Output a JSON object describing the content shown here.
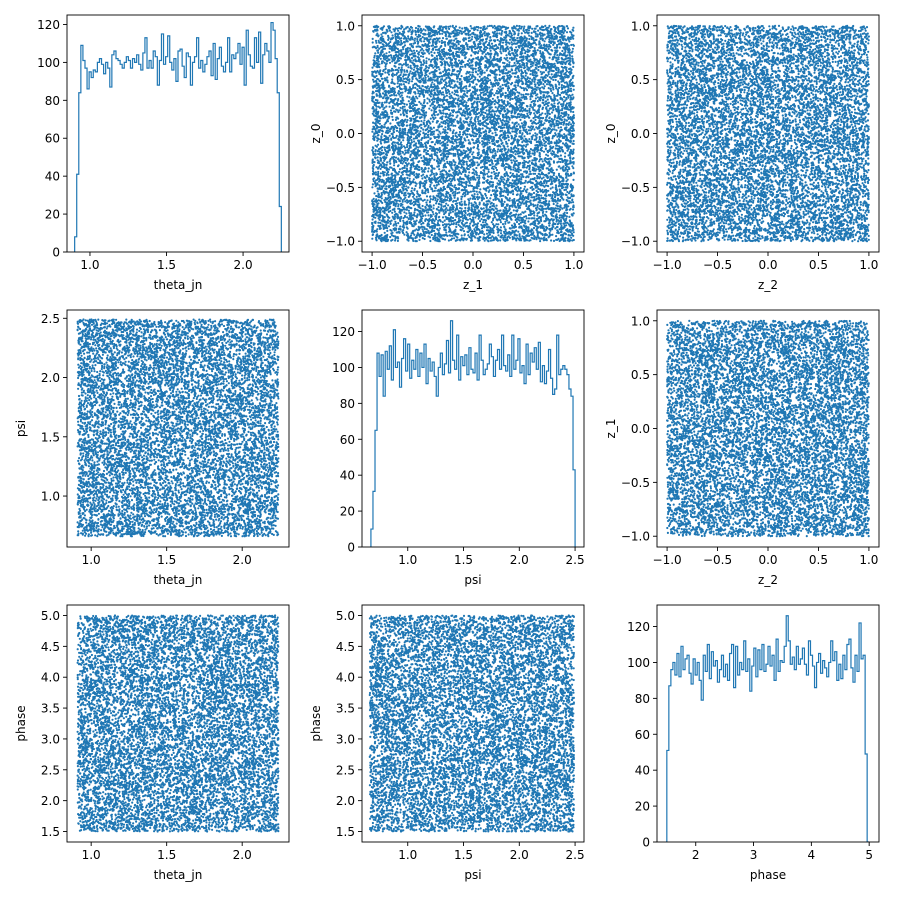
{
  "figure": {
    "layout": "3x3 corner plot",
    "marker_color": "#1f77b4",
    "axes_color": "#000000",
    "background": "#ffffff"
  },
  "chart_data": [
    {
      "id": "p11",
      "type": "histogram",
      "row": 0,
      "col": 0,
      "xlabel": "theta_jn",
      "ylabel": "",
      "xlim": [
        0.85,
        2.3
      ],
      "ylim": [
        0,
        125
      ],
      "xticks": [
        1.0,
        1.5,
        2.0
      ],
      "xtick_labels": [
        "1.0",
        "1.5",
        "2.0"
      ],
      "yticks": [
        0,
        20,
        40,
        60,
        80,
        100,
        120
      ],
      "ytick_labels": [
        "0",
        "20",
        "40",
        "60",
        "80",
        "100",
        "120"
      ],
      "bin_range": [
        0.9,
        2.25
      ],
      "bin_count": 100,
      "counts": [
        8,
        41,
        84,
        109,
        101,
        97,
        86,
        95,
        92,
        96,
        95,
        100,
        102,
        99,
        94,
        100,
        97,
        87,
        104,
        106,
        102,
        101,
        99,
        97,
        100,
        103,
        101,
        97,
        102,
        100,
        104,
        99,
        96,
        105,
        113,
        97,
        101,
        97,
        106,
        103,
        88,
        101,
        115,
        99,
        103,
        114,
        100,
        96,
        102,
        90,
        106,
        107,
        98,
        92,
        105,
        103,
        88,
        100,
        103,
        113,
        97,
        101,
        95,
        99,
        103,
        106,
        93,
        110,
        91,
        102,
        108,
        98,
        95,
        100,
        113,
        95,
        104,
        102,
        105,
        110,
        99,
        108,
        88,
        117,
        104,
        98,
        97,
        113,
        100,
        116,
        89,
        104,
        110,
        106,
        100,
        121,
        117,
        102,
        84,
        24
      ]
    },
    {
      "id": "p21",
      "type": "scatter",
      "row": 0,
      "col": 1,
      "xlabel": "z_1",
      "ylabel": "z_0",
      "xlim": [
        -1.1,
        1.1
      ],
      "ylim": [
        -1.1,
        1.1
      ],
      "xticks": [
        -1.0,
        -0.5,
        0.0,
        0.5,
        1.0
      ],
      "xtick_labels": [
        "−1.0",
        "−0.5",
        "0.0",
        "0.5",
        "1.0"
      ],
      "yticks": [
        -1.0,
        -0.5,
        0.0,
        0.5,
        1.0
      ],
      "ytick_labels": [
        "−1.0",
        "−0.5",
        "0.0",
        "0.5",
        "1.0"
      ],
      "x_range": [
        -1.0,
        1.0
      ],
      "y_range": [
        -1.0,
        1.0
      ],
      "n_points": 10000,
      "seed": 11
    },
    {
      "id": "p22",
      "type": "scatter",
      "row": 0,
      "col": 2,
      "xlabel": "z_2",
      "ylabel": "z_0",
      "xlim": [
        -1.1,
        1.1
      ],
      "ylim": [
        -1.1,
        1.1
      ],
      "xticks": [
        -1.0,
        -0.5,
        0.0,
        0.5,
        1.0
      ],
      "xtick_labels": [
        "−1.0",
        "−0.5",
        "0.0",
        "0.5",
        "1.0"
      ],
      "yticks": [
        -1.0,
        -0.5,
        0.0,
        0.5,
        1.0
      ],
      "ytick_labels": [
        "−1.0",
        "−0.5",
        "0.0",
        "0.5",
        "1.0"
      ],
      "x_range": [
        -1.0,
        1.0
      ],
      "y_range": [
        -1.0,
        1.0
      ],
      "n_points": 10000,
      "seed": 23
    },
    {
      "id": "p31",
      "type": "scatter",
      "row": 1,
      "col": 0,
      "xlabel": "theta_jn",
      "ylabel": "psi",
      "xlim": [
        0.84,
        2.31
      ],
      "ylim": [
        0.57,
        2.57
      ],
      "xticks": [
        1.0,
        1.5,
        2.0
      ],
      "xtick_labels": [
        "1.0",
        "1.5",
        "2.0"
      ],
      "yticks": [
        1.0,
        1.5,
        2.0,
        2.5
      ],
      "ytick_labels": [
        "1.0",
        "1.5",
        "2.0",
        "2.5"
      ],
      "x_range": [
        0.91,
        2.24
      ],
      "y_range": [
        0.66,
        2.49
      ],
      "n_points": 10000,
      "seed": 37
    },
    {
      "id": "p32",
      "type": "histogram",
      "row": 1,
      "col": 1,
      "xlabel": "psi",
      "ylabel": "",
      "xlim": [
        0.59,
        2.58
      ],
      "ylim": [
        0,
        132
      ],
      "xticks": [
        1.0,
        1.5,
        2.0,
        2.5
      ],
      "xtick_labels": [
        "1.0",
        "1.5",
        "2.0",
        "2.5"
      ],
      "yticks": [
        0,
        20,
        40,
        60,
        80,
        100,
        120
      ],
      "ytick_labels": [
        "0",
        "20",
        "40",
        "60",
        "80",
        "100",
        "120"
      ],
      "bin_range": [
        0.67,
        2.5
      ],
      "bin_count": 100,
      "counts": [
        10,
        31,
        65,
        108,
        95,
        107,
        84,
        109,
        99,
        112,
        93,
        121,
        100,
        103,
        89,
        105,
        116,
        98,
        113,
        94,
        104,
        99,
        110,
        95,
        108,
        100,
        113,
        91,
        105,
        98,
        103,
        95,
        84,
        100,
        108,
        96,
        102,
        115,
        97,
        126,
        104,
        99,
        118,
        93,
        106,
        101,
        107,
        96,
        111,
        99,
        97,
        108,
        93,
        118,
        104,
        96,
        99,
        102,
        113,
        106,
        95,
        104,
        110,
        99,
        118,
        101,
        98,
        107,
        95,
        118,
        99,
        104,
        116,
        97,
        101,
        91,
        113,
        96,
        108,
        103,
        111,
        99,
        114,
        92,
        101,
        91,
        98,
        110,
        94,
        85,
        88,
        118,
        96,
        99,
        101,
        99,
        96,
        88,
        84,
        43
      ]
    },
    {
      "id": "p33",
      "type": "scatter",
      "row": 1,
      "col": 2,
      "xlabel": "z_2",
      "ylabel": "z_1",
      "xlim": [
        -1.1,
        1.1
      ],
      "ylim": [
        -1.1,
        1.1
      ],
      "xticks": [
        -1.0,
        -0.5,
        0.0,
        0.5,
        1.0
      ],
      "xtick_labels": [
        "−1.0",
        "−0.5",
        "0.0",
        "0.5",
        "1.0"
      ],
      "yticks": [
        -1.0,
        -0.5,
        0.0,
        0.5,
        1.0
      ],
      "ytick_labels": [
        "−1.0",
        "−0.5",
        "0.0",
        "0.5",
        "1.0"
      ],
      "x_range": [
        -1.0,
        1.0
      ],
      "y_range": [
        -1.0,
        1.0
      ],
      "n_points": 10000,
      "seed": 53
    },
    {
      "id": "p41",
      "type": "scatter",
      "row": 2,
      "col": 0,
      "xlabel": "theta_jn",
      "ylabel": "phase",
      "xlim": [
        0.84,
        2.31
      ],
      "ylim": [
        1.33,
        5.17
      ],
      "xticks": [
        1.0,
        1.5,
        2.0
      ],
      "xtick_labels": [
        "1.0",
        "1.5",
        "2.0"
      ],
      "yticks": [
        1.5,
        2.0,
        2.5,
        3.0,
        3.5,
        4.0,
        4.5,
        5.0
      ],
      "ytick_labels": [
        "1.5",
        "2.0",
        "2.5",
        "3.0",
        "3.5",
        "4.0",
        "4.5",
        "5.0"
      ],
      "x_range": [
        0.91,
        2.24
      ],
      "y_range": [
        1.5,
        5.0
      ],
      "n_points": 10000,
      "seed": 71
    },
    {
      "id": "p42",
      "type": "scatter",
      "row": 2,
      "col": 1,
      "xlabel": "psi",
      "ylabel": "phase",
      "xlim": [
        0.59,
        2.58
      ],
      "ylim": [
        1.33,
        5.17
      ],
      "xticks": [
        1.0,
        1.5,
        2.0,
        2.5
      ],
      "xtick_labels": [
        "1.0",
        "1.5",
        "2.0",
        "2.5"
      ],
      "yticks": [
        1.5,
        2.0,
        2.5,
        3.0,
        3.5,
        4.0,
        4.5,
        5.0
      ],
      "ytick_labels": [
        "1.5",
        "2.0",
        "2.5",
        "3.0",
        "3.5",
        "4.0",
        "4.5",
        "5.0"
      ],
      "x_range": [
        0.66,
        2.49
      ],
      "y_range": [
        1.5,
        5.0
      ],
      "n_points": 10000,
      "seed": 89
    },
    {
      "id": "p43",
      "type": "histogram",
      "row": 2,
      "col": 2,
      "xlabel": "phase",
      "ylabel": "",
      "xlim": [
        1.33,
        5.17
      ],
      "ylim": [
        0,
        132
      ],
      "xticks": [
        2,
        3,
        4,
        5
      ],
      "xtick_labels": [
        "2",
        "3",
        "4",
        "5"
      ],
      "yticks": [
        0,
        20,
        40,
        60,
        80,
        100,
        120
      ],
      "ytick_labels": [
        "0",
        "20",
        "40",
        "60",
        "80",
        "100",
        "120"
      ],
      "bin_range": [
        1.5,
        5.0
      ],
      "bin_count": 100,
      "counts": [
        51,
        87,
        96,
        100,
        93,
        105,
        92,
        109,
        96,
        102,
        104,
        94,
        88,
        102,
        93,
        100,
        90,
        79,
        104,
        95,
        110,
        91,
        106,
        98,
        101,
        89,
        96,
        104,
        92,
        99,
        90,
        105,
        110,
        86,
        109,
        93,
        100,
        96,
        112,
        95,
        102,
        84,
        98,
        108,
        92,
        107,
        96,
        110,
        95,
        99,
        109,
        98,
        104,
        90,
        113,
        95,
        101,
        100,
        109,
        126,
        112,
        99,
        103,
        96,
        109,
        99,
        102,
        108,
        99,
        93,
        112,
        104,
        98,
        86,
        100,
        105,
        94,
        101,
        97,
        92,
        100,
        112,
        101,
        106,
        90,
        99,
        91,
        104,
        96,
        110,
        113,
        97,
        89,
        104,
        95,
        122,
        102,
        104,
        49,
        0
      ]
    }
  ]
}
